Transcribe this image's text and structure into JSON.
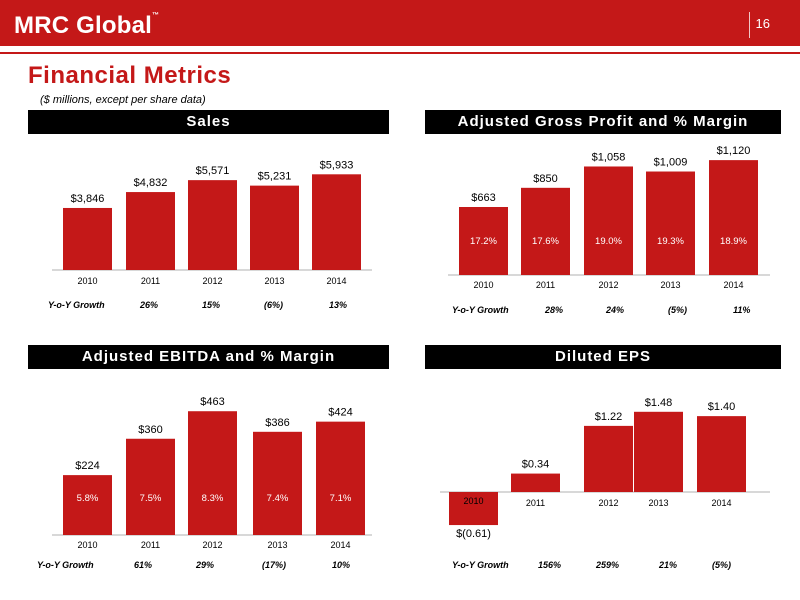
{
  "header": {
    "brand": "MRC Global",
    "page_number": "16",
    "title": "Financial Metrics",
    "subtitle": "($ millions, except per share data)"
  },
  "colors": {
    "accent": "#c41818",
    "bar": "#c41818",
    "panel_header": "#000000"
  },
  "chart_data": [
    {
      "type": "bar",
      "panel_title": "Sales",
      "categories": [
        "2010",
        "2011",
        "2012",
        "2013",
        "2014"
      ],
      "values": [
        3846,
        4832,
        5571,
        5231,
        5933
      ],
      "value_labels": [
        "$3,846",
        "$4,832",
        "$5,571",
        "$5,231",
        "$5,933"
      ],
      "growth_label": "Y-o-Y Growth",
      "growth": [
        "26%",
        "15%",
        "(6%)",
        "13%"
      ],
      "ylim": [
        0,
        6200
      ]
    },
    {
      "type": "bar",
      "panel_title": "Adjusted Gross Profit and % Margin",
      "categories": [
        "2010",
        "2011",
        "2012",
        "2013",
        "2014"
      ],
      "values": [
        663,
        850,
        1058,
        1009,
        1120
      ],
      "value_labels": [
        "$663",
        "$850",
        "$1,058",
        "$1,009",
        "$1,120"
      ],
      "margins": [
        "17.2%",
        "17.6%",
        "19.0%",
        "19.3%",
        "18.9%"
      ],
      "growth_label": "Y-o-Y Growth",
      "growth": [
        "28%",
        "24%",
        "(5%)",
        "11%"
      ],
      "ylim": [
        0,
        1170
      ]
    },
    {
      "type": "bar",
      "panel_title": "Adjusted EBITDA and % Margin",
      "categories": [
        "2010",
        "2011",
        "2012",
        "2013",
        "2014"
      ],
      "values": [
        224,
        360,
        463,
        386,
        424
      ],
      "value_labels": [
        "$224",
        "$360",
        "$463",
        "$386",
        "$424"
      ],
      "margins": [
        "5.8%",
        "7.5%",
        "8.3%",
        "7.4%",
        "7.1%"
      ],
      "growth_label": "Y-o-Y Growth",
      "growth": [
        "61%",
        "29%",
        "(17%)",
        "10%"
      ],
      "ylim": [
        0,
        490
      ]
    },
    {
      "type": "bar",
      "panel_title": "Diluted EPS",
      "categories": [
        "2010",
        "2011",
        "2012",
        "2013",
        "2014"
      ],
      "values": [
        -0.61,
        0.34,
        1.22,
        1.48,
        1.4
      ],
      "value_labels": [
        "$(0.61)",
        "$0.34",
        "$1.22",
        "$1.48",
        "$1.40"
      ],
      "growth_label": "Y-o-Y Growth",
      "growth": [
        "156%",
        "259%",
        "21%",
        "(5%)"
      ],
      "ylim": [
        -0.61,
        1.55
      ]
    }
  ]
}
